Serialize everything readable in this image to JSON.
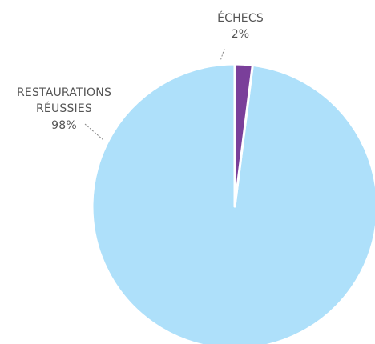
{
  "chart_data": {
    "type": "pie",
    "slices": [
      {
        "label_lines": [
          "RESTAURATIONS",
          "RÉUSSIES"
        ],
        "value": 98,
        "value_label": "98%",
        "color": "#aee0fa"
      },
      {
        "label_lines": [
          "ÉCHECS"
        ],
        "value": 2,
        "value_label": "2%",
        "color": "#7a3f9a"
      }
    ],
    "start_angle": "12 o'clock",
    "direction": "counterclockwise",
    "separator_color": "#ffffff",
    "leader_lines": "dotted"
  }
}
